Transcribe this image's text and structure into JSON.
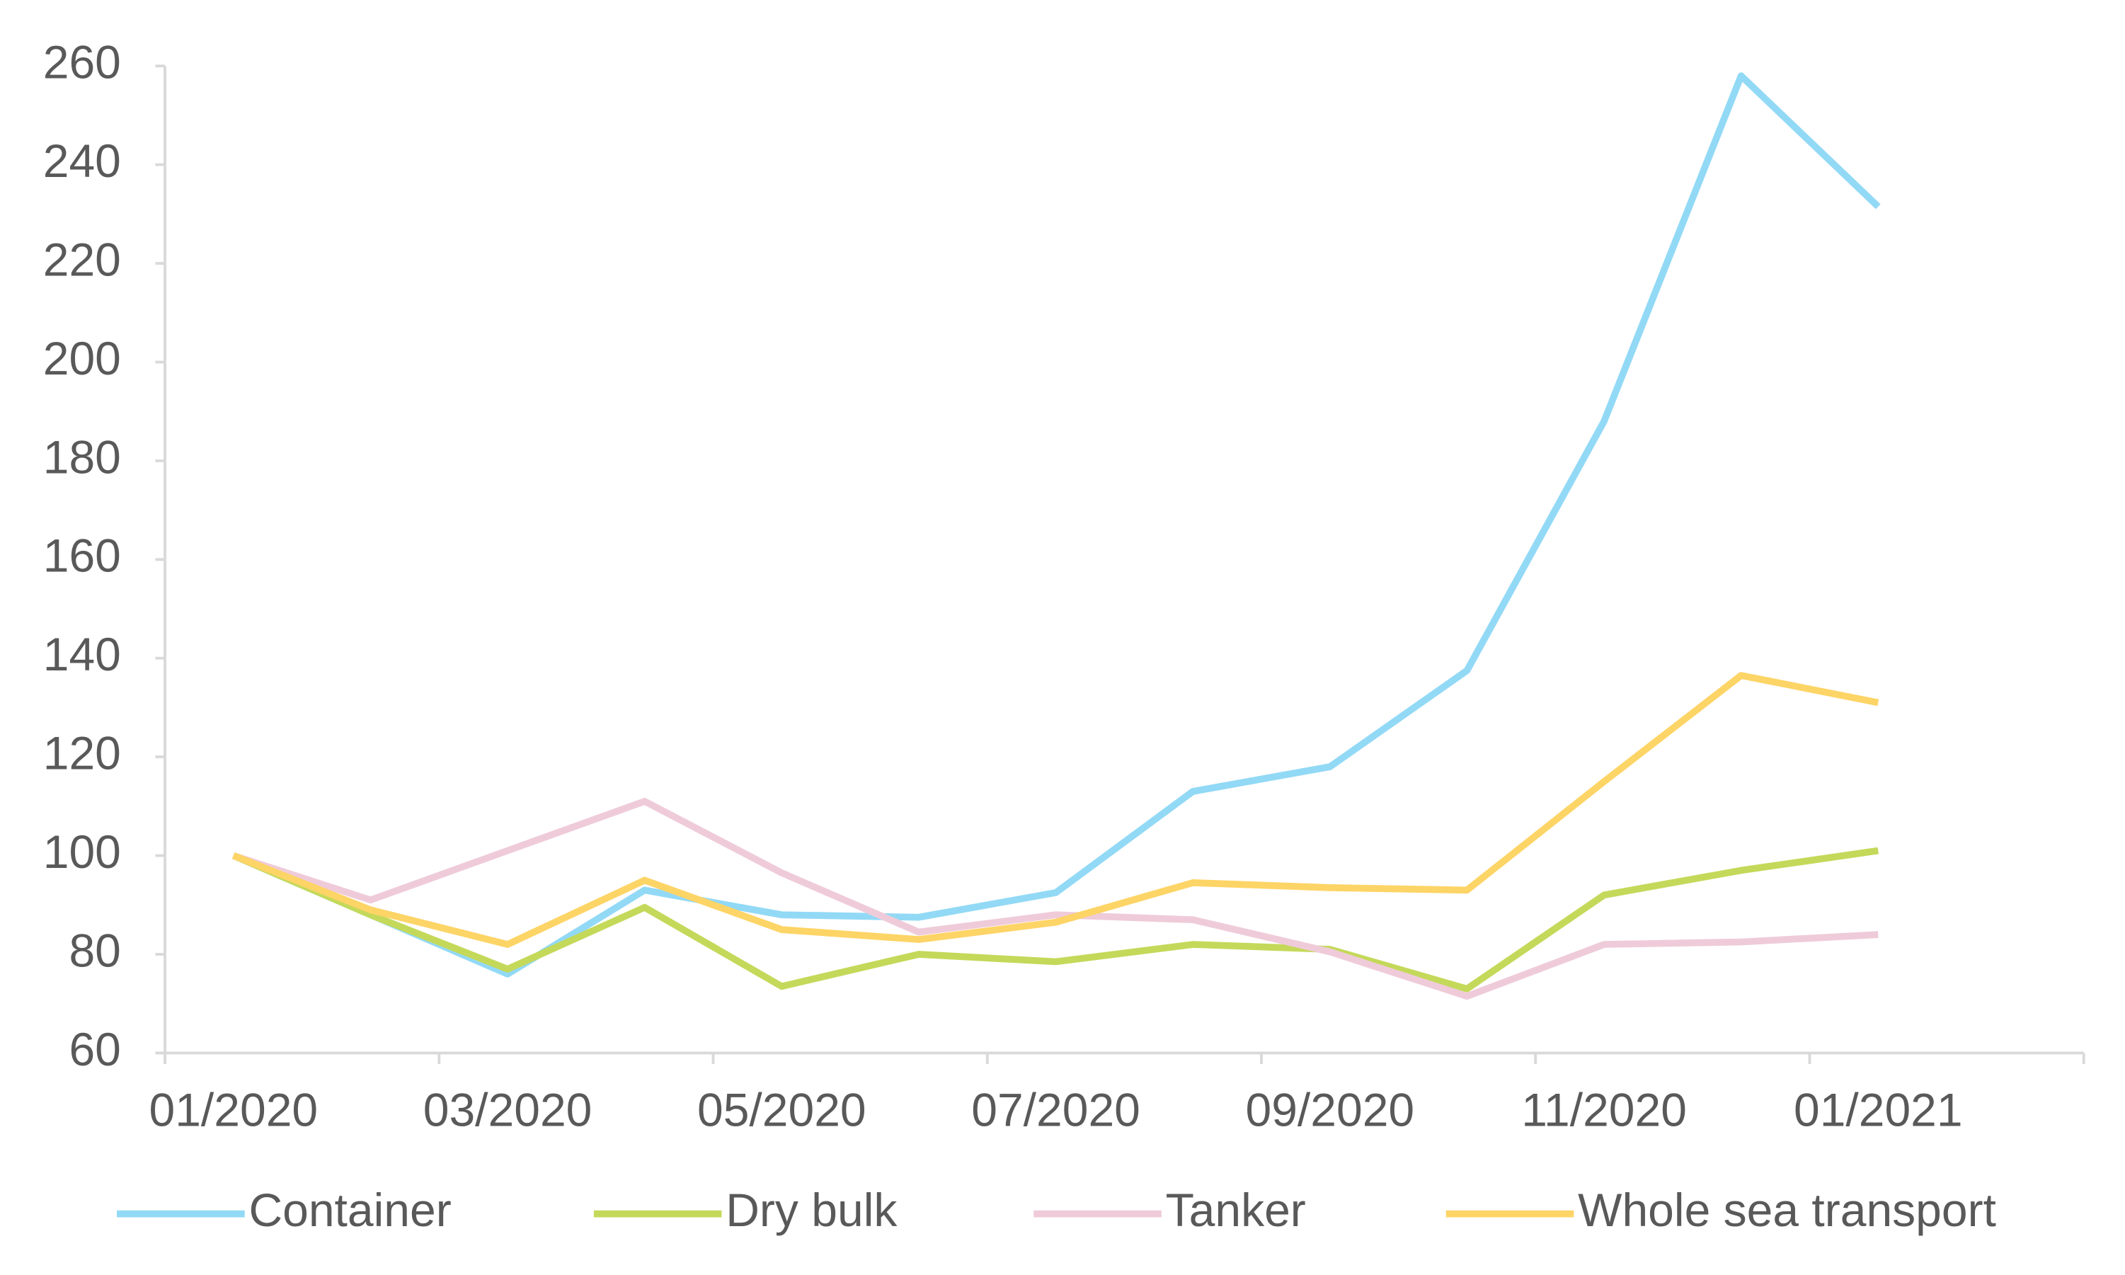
{
  "chart_data": {
    "type": "line",
    "categories": [
      "01/2020",
      null,
      "03/2020",
      null,
      "05/2020",
      null,
      "07/2020",
      null,
      "09/2020",
      null,
      "11/2020",
      null,
      "01/2021",
      null
    ],
    "series": [
      {
        "name": "Container",
        "color": "#92d9f6",
        "values": [
          100,
          88,
          76,
          93,
          88,
          87.5,
          92.5,
          113,
          118,
          137.5,
          188,
          258,
          231.5,
          null
        ]
      },
      {
        "name": "Dry bulk",
        "color": "#c4d95a",
        "values": [
          100,
          88,
          77,
          89.5,
          73.5,
          80,
          78.5,
          82,
          81,
          73,
          92,
          97,
          101,
          null
        ]
      },
      {
        "name": "Tanker",
        "color": "#efcbd9",
        "values": [
          100,
          91,
          101,
          111,
          96.5,
          84.5,
          88,
          87,
          80.5,
          71.5,
          82,
          82.5,
          84,
          null
        ]
      },
      {
        "name": "Whole sea transport",
        "color": "#fdd466",
        "values": [
          100,
          89,
          82,
          95,
          85,
          83,
          86.5,
          94.5,
          93.5,
          93,
          115,
          136.5,
          131,
          null
        ]
      }
    ],
    "ylim": [
      60,
      260
    ],
    "yticks": [
      60,
      80,
      100,
      120,
      140,
      160,
      180,
      200,
      220,
      240,
      260
    ],
    "legend": "bottom"
  }
}
